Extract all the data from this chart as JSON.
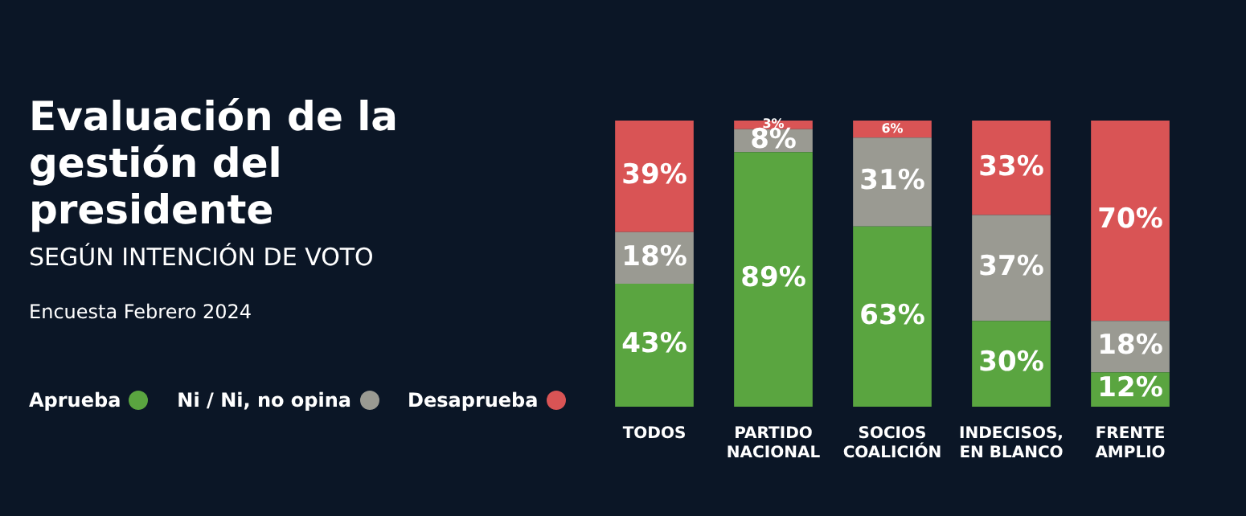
{
  "chart_data": {
    "type": "bar",
    "title": "Evaluación de la gestión del presidente",
    "subtitle": "SEGÚN INTENCIÓN DE VOTO",
    "annotations": [
      "Encuesta Febrero 2024"
    ],
    "categories": [
      "TODOS",
      "PARTIDO\nNACIONAL",
      "SOCIOS\nCOALICIÓN",
      "INDECISOS,\nEN BLANCO",
      "FRENTE\nAMPLIO"
    ],
    "series": [
      {
        "name": "Aprueba",
        "color": "#5aa540",
        "values": [
          43,
          89,
          63,
          30,
          12
        ],
        "value_labels": [
          "43%",
          "89%",
          "63%",
          "30%",
          "12%"
        ]
      },
      {
        "name": "Ni / Ni, no opina",
        "color": "#9a9a92",
        "values": [
          18,
          8,
          31,
          37,
          18
        ],
        "value_labels": [
          "18%",
          "8%",
          "31%",
          "37%",
          "18%"
        ]
      },
      {
        "name": "Desaprueba",
        "color": "#d95455",
        "values": [
          39,
          3,
          6,
          33,
          70
        ],
        "value_labels": [
          "39%",
          "3%",
          "6%",
          "33%",
          "70%"
        ]
      }
    ],
    "stacked": true,
    "tick_labels": "x",
    "legend": "left"
  }
}
